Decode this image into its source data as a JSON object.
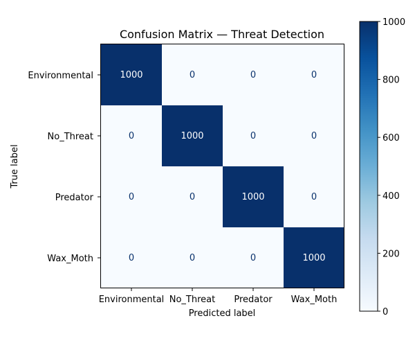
{
  "chart_data": {
    "type": "heatmap",
    "title": "Confusion Matrix — Threat Detection",
    "xlabel": "Predicted label",
    "ylabel": "True label",
    "x_categories": [
      "Environmental",
      "No_Threat",
      "Predator",
      "Wax_Moth"
    ],
    "y_categories": [
      "Environmental",
      "No_Threat",
      "Predator",
      "Wax_Moth"
    ],
    "values": [
      [
        1000,
        0,
        0,
        0
      ],
      [
        0,
        1000,
        0,
        0
      ],
      [
        0,
        0,
        1000,
        0
      ],
      [
        0,
        0,
        0,
        1000
      ]
    ],
    "colorbar": {
      "range": [
        0,
        1000
      ],
      "ticks": [
        0,
        200,
        400,
        600,
        800,
        1000
      ],
      "colormap": "Blues",
      "low_color": "#f7fbff",
      "high_color": "#08306b"
    },
    "text_colors": {
      "on_dark": "#ffffff",
      "on_light": "#08306b"
    },
    "grid": false
  }
}
